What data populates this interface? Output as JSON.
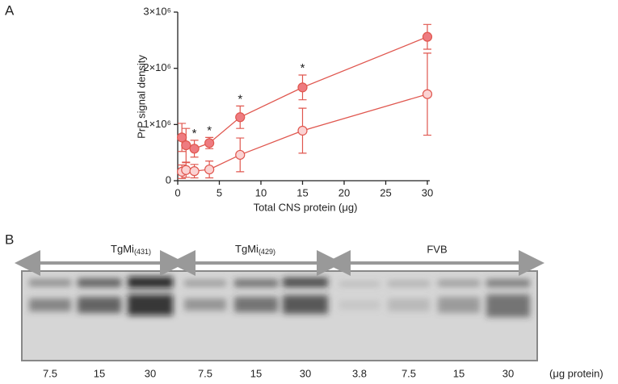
{
  "panels": [
    "A",
    "B"
  ],
  "chart_data": {
    "type": "line",
    "y_label": "PrP signal density",
    "x_label": "Total CNS protein (μg)",
    "xlim": [
      0,
      30
    ],
    "xticks": [
      0,
      5,
      10,
      15,
      20,
      25,
      30
    ],
    "ylim": [
      0,
      3000000
    ],
    "yticks": [
      0,
      {
        "value": 1000000,
        "label": "1×10⁶"
      },
      {
        "value": 2000000,
        "label": "2×10⁶"
      },
      {
        "value": 3000000,
        "label": "3×10⁶"
      }
    ],
    "x": [
      0.5,
      1,
      2,
      3.8,
      7.5,
      15,
      30
    ],
    "line_color": "#e0574f",
    "series": [
      {
        "color": "#ee7b80",
        "values": [
          770000,
          630000,
          570000,
          670000,
          1130000,
          1660000,
          2560000
        ],
        "errors": [
          250000,
          300000,
          150000,
          100000,
          200000,
          220000,
          220000
        ]
      },
      {
        "color": "#fbd3d3",
        "values": [
          160000,
          190000,
          170000,
          200000,
          460000,
          890000,
          1540000
        ],
        "errors": [
          120000,
          130000,
          120000,
          150000,
          300000,
          400000,
          730000
        ]
      }
    ],
    "annotations": [
      {
        "text": "*",
        "x": 2
      },
      {
        "text": "*",
        "x": 3.8
      },
      {
        "text": "*",
        "x": 7.5
      },
      {
        "text": "*",
        "x": 15
      }
    ]
  },
  "blot": {
    "groups": [
      {
        "label": "TgMi",
        "sub": "(431)"
      },
      {
        "label": "TgMi",
        "sub": "(429)"
      },
      {
        "label": "FVB"
      }
    ],
    "lanes": [
      "7.5",
      "15",
      "30",
      "7.5",
      "15",
      "30",
      "3.8",
      "7.5",
      "15",
      "30"
    ],
    "unit": "(μg protein)"
  }
}
